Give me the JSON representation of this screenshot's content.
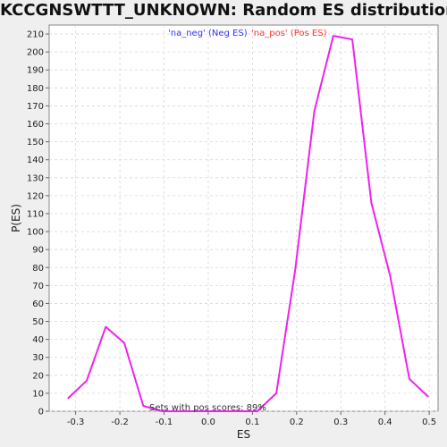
{
  "chart_data": {
    "type": "line",
    "title": "KCCGNSWTTT_UNKNOWN: Random ES distribution",
    "xlabel": "ES",
    "ylabel": "P(ES)",
    "xlim": [
      -0.36,
      0.52
    ],
    "ylim": [
      0,
      215
    ],
    "xticks": [
      "-0.3",
      "-0.2",
      "-0.1",
      "0.0",
      "0.1",
      "0.2",
      "0.3",
      "0.4",
      "0.5"
    ],
    "yticks": [
      "0",
      "10",
      "20",
      "30",
      "40",
      "50",
      "60",
      "70",
      "80",
      "90",
      "100",
      "110",
      "120",
      "130",
      "140",
      "150",
      "160",
      "170",
      "180",
      "190",
      "200",
      "210"
    ],
    "grid": true,
    "legend_placement": "top-center",
    "legend": [
      {
        "label": "'na_neg' (Neg ES)",
        "color": "#3333ff"
      },
      {
        "label": "'na_pos' (Pos ES)",
        "color": "#ff3333"
      }
    ],
    "annotation": "Sets with pos scores: 89%",
    "series": [
      {
        "color": "#ee22ee",
        "x": [
          -0.318,
          -0.275,
          -0.232,
          -0.19,
          -0.147,
          -0.104,
          -0.061,
          -0.018,
          0.025,
          0.068,
          0.111,
          0.154,
          0.197,
          0.24,
          0.283,
          0.326,
          0.369,
          0.412,
          0.455,
          0.498
        ],
        "y": [
          7,
          17,
          47,
          38,
          3,
          0,
          0,
          0,
          0,
          0,
          0,
          10,
          79,
          167,
          209,
          207,
          116,
          75,
          18,
          8
        ]
      }
    ]
  }
}
